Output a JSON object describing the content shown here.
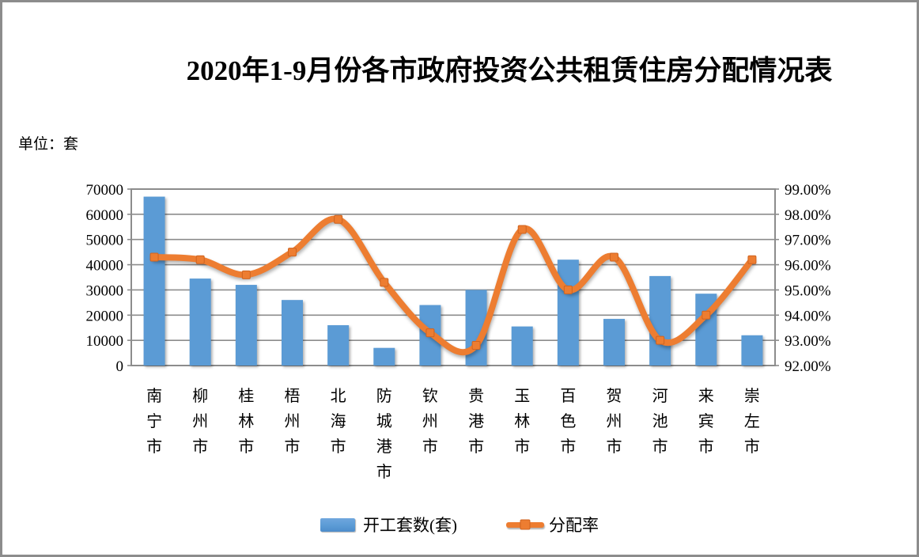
{
  "window": {
    "background": "#FFFFFF",
    "border_color": "#8C8C8C"
  },
  "header": {
    "title": "2020年1-9月份各市政府投资公共租赁住房分配情况表",
    "unit_label": "单位：套"
  },
  "legend": {
    "bar_label": "开工套数(套)",
    "line_label": "分配率"
  },
  "chart_data": {
    "type": "bar",
    "subtype": "combo-bar-line",
    "title": "2020年1-9月份各市政府投资公共租赁住房分配情况表",
    "unit": "套",
    "categories": [
      "南宁市",
      "柳州市",
      "桂林市",
      "梧州市",
      "北海市",
      "防城港市",
      "钦州市",
      "贵港市",
      "玉林市",
      "百色市",
      "贺州市",
      "河池市",
      "来宾市",
      "崇左市"
    ],
    "series": [
      {
        "name": "开工套数(套)",
        "type": "bar",
        "axis": "left",
        "color": "#5B9BD5",
        "values": [
          67000,
          34500,
          32000,
          26000,
          16000,
          7000,
          24000,
          30000,
          15500,
          42000,
          18500,
          35500,
          28500,
          12000
        ]
      },
      {
        "name": "分配率",
        "type": "line",
        "axis": "right",
        "color": "#ED7D31",
        "smooth": true,
        "values": [
          96.3,
          96.2,
          95.6,
          96.5,
          97.8,
          95.3,
          93.3,
          92.8,
          97.4,
          95.0,
          96.3,
          93.0,
          94.0,
          96.2
        ]
      }
    ],
    "left_axis": {
      "min": 0,
      "max": 70000,
      "step": 10000,
      "tick_labels": [
        "70000",
        "60000",
        "50000",
        "40000",
        "30000",
        "20000",
        "10000",
        "0"
      ]
    },
    "right_axis": {
      "min": 92,
      "max": 99,
      "step": 1,
      "tick_labels": [
        "99.00%",
        "98.00%",
        "97.00%",
        "96.00%",
        "95.00%",
        "94.00%",
        "93.00%",
        "92.00%"
      ]
    },
    "grid": true,
    "legend_position": "bottom",
    "colors": {
      "bar": "#5B9BD5",
      "bar_light": "#6FA7DE",
      "bar_dark": "#4D8CCB",
      "line": "#ED7D31",
      "marker_border": "#CF6420",
      "grid": "#8C8C8C",
      "axis_text": "#000000"
    }
  }
}
